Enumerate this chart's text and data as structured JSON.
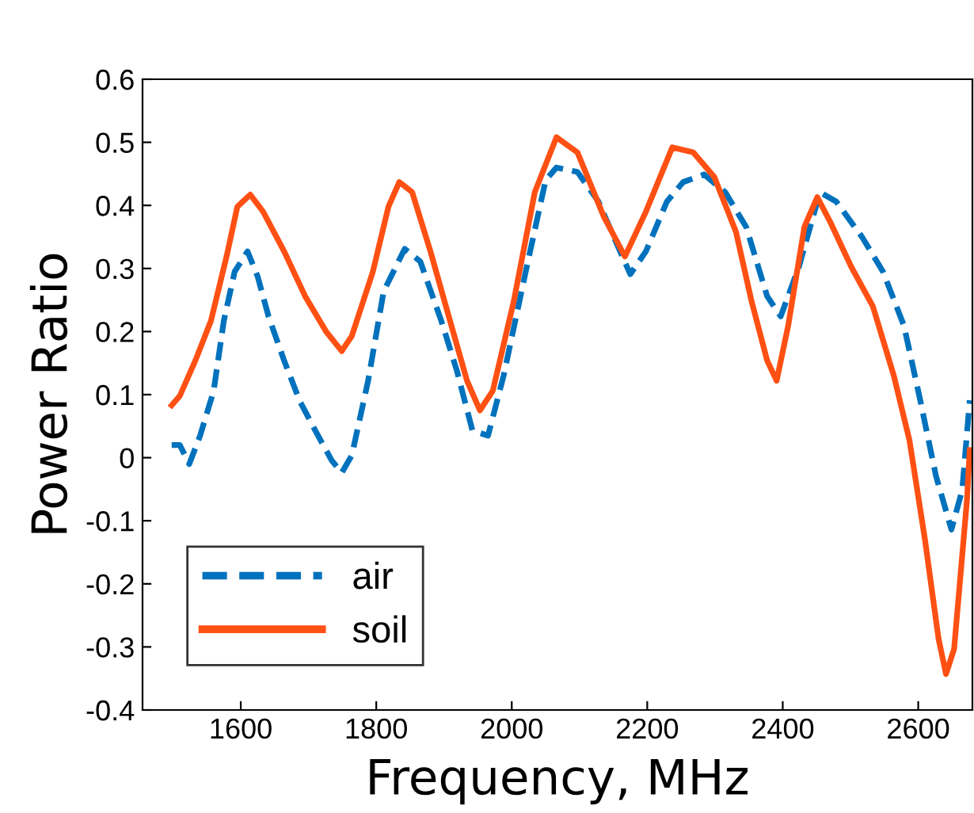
{
  "chart_data": {
    "type": "line",
    "xlabel": "Frequency, MHz",
    "ylabel": "Power Ratio",
    "xlim": [
      1455,
      2680
    ],
    "ylim": [
      -0.4,
      0.6
    ],
    "xticks": [
      1600,
      1800,
      2000,
      2200,
      2400,
      2600
    ],
    "yticks": [
      -0.4,
      -0.3,
      -0.2,
      -0.1,
      0,
      0.1,
      0.2,
      0.3,
      0.4,
      0.5,
      0.6
    ],
    "grid": false,
    "legend": "bottom left",
    "marker": "none",
    "series": [
      {
        "name": "air",
        "color": "#0072bd",
        "line_style": "dashed",
        "x": [
          1498,
          1510,
          1524,
          1540,
          1560,
          1575,
          1591,
          1610,
          1625,
          1641,
          1664,
          1687,
          1710,
          1734,
          1749,
          1764,
          1788,
          1811,
          1842,
          1865,
          1896,
          1919,
          1942,
          1965,
          1988,
          2019,
          2050,
          2066,
          2097,
          2128,
          2160,
          2175,
          2198,
          2229,
          2253,
          2284,
          2315,
          2346,
          2377,
          2397,
          2424,
          2455,
          2479,
          2517,
          2548,
          2579,
          2603,
          2626,
          2649,
          2665,
          2676
        ],
        "values": [
          0.02,
          0.02,
          -0.01,
          0.035,
          0.106,
          0.217,
          0.295,
          0.327,
          0.287,
          0.224,
          0.154,
          0.09,
          0.043,
          -0.004,
          -0.024,
          0.004,
          0.122,
          0.264,
          0.331,
          0.311,
          0.217,
          0.138,
          0.043,
          0.035,
          0.13,
          0.287,
          0.44,
          0.46,
          0.453,
          0.406,
          0.327,
          0.291,
          0.327,
          0.406,
          0.437,
          0.449,
          0.421,
          0.366,
          0.256,
          0.224,
          0.303,
          0.421,
          0.406,
          0.35,
          0.295,
          0.209,
          0.091,
          -0.028,
          -0.114,
          -0.051,
          0.091
        ]
      },
      {
        "name": "soil",
        "color": "#ff5014",
        "line_style": "solid",
        "x": [
          1498,
          1510,
          1533,
          1556,
          1579,
          1595,
          1614,
          1633,
          1664,
          1695,
          1726,
          1749,
          1764,
          1795,
          1818,
          1834,
          1853,
          1880,
          1911,
          1934,
          1953,
          1972,
          2003,
          2034,
          2066,
          2097,
          2136,
          2167,
          2198,
          2237,
          2268,
          2299,
          2331,
          2354,
          2377,
          2391,
          2408,
          2432,
          2451,
          2470,
          2501,
          2533,
          2564,
          2587,
          2610,
          2630,
          2641,
          2653,
          2672,
          2676
        ],
        "values": [
          0.083,
          0.098,
          0.154,
          0.217,
          0.319,
          0.398,
          0.417,
          0.39,
          0.327,
          0.256,
          0.2,
          0.169,
          0.193,
          0.295,
          0.398,
          0.437,
          0.421,
          0.327,
          0.209,
          0.122,
          0.075,
          0.106,
          0.248,
          0.421,
          0.508,
          0.484,
          0.382,
          0.319,
          0.39,
          0.492,
          0.484,
          0.445,
          0.358,
          0.248,
          0.154,
          0.122,
          0.209,
          0.366,
          0.413,
          0.374,
          0.303,
          0.24,
          0.13,
          0.028,
          -0.13,
          -0.287,
          -0.343,
          -0.303,
          -0.067,
          0.012
        ]
      }
    ]
  }
}
